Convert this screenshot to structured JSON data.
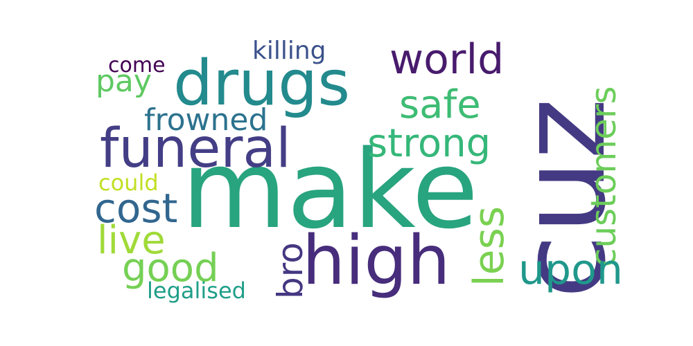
{
  "words": {
    "make": {
      "text": "make",
      "color": "#28a47f"
    },
    "cuz": {
      "text": "cuz",
      "color": "#443a83"
    },
    "drugs": {
      "text": "drugs",
      "color": "#238a8d"
    },
    "high": {
      "text": "high",
      "color": "#472d7b"
    },
    "funeral": {
      "text": "funeral",
      "color": "#433e85"
    },
    "customers": {
      "text": "customers",
      "color": "#6ccd5a"
    },
    "world": {
      "text": "world",
      "color": "#481b6d"
    },
    "safe": {
      "text": "safe",
      "color": "#3dbc74"
    },
    "strong": {
      "text": "strong",
      "color": "#35b779"
    },
    "less": {
      "text": "less",
      "color": "#7ad151"
    },
    "upon": {
      "text": "upon",
      "color": "#1f988b"
    },
    "cost": {
      "text": "cost",
      "color": "#31668e"
    },
    "live": {
      "text": "live",
      "color": "#a0da39"
    },
    "good": {
      "text": "good",
      "color": "#75d054"
    },
    "frowned": {
      "text": "frowned",
      "color": "#2c728e"
    },
    "pay": {
      "text": "pay",
      "color": "#5ec962"
    },
    "killing": {
      "text": "killing",
      "color": "#3b528b"
    },
    "come": {
      "text": "come",
      "color": "#440154"
    },
    "could": {
      "text": "could",
      "color": "#c2df23"
    },
    "bro": {
      "text": "bro",
      "color": "#453781"
    },
    "legalised": {
      "text": "legalised",
      "color": "#1f9e89"
    }
  }
}
